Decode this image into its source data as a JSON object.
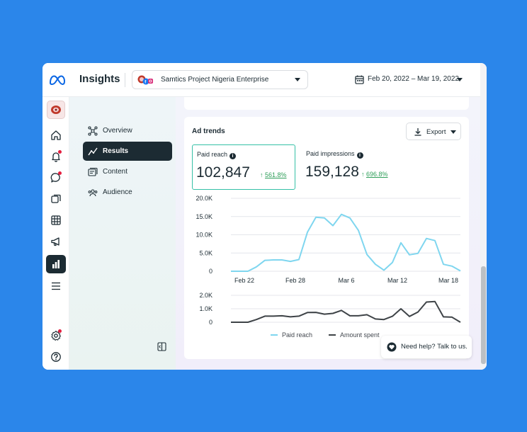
{
  "header": {
    "app_title": "Insights",
    "account_name": "Samtics Project Nigeria Enterprise",
    "date_range": "Feb 20, 2022 – Mar 19, 2022"
  },
  "rail": {
    "items": [
      "profile-avatar",
      "home-icon",
      "notifications-icon",
      "messages-icon",
      "pages-icon",
      "table-icon",
      "ads-megaphone-icon",
      "insights-chart-icon",
      "menu-icon",
      "settings-icon",
      "help-icon"
    ],
    "active": "insights-chart-icon"
  },
  "subnav": {
    "items": [
      {
        "label": "Overview",
        "icon": "overview-icon"
      },
      {
        "label": "Results",
        "icon": "results-trend-icon",
        "active": true
      },
      {
        "label": "Content",
        "icon": "content-icon"
      },
      {
        "label": "Audience",
        "icon": "audience-icon"
      }
    ]
  },
  "card": {
    "title": "Ad trends",
    "export_label": "Export"
  },
  "metrics": [
    {
      "label": "Paid reach",
      "value": "102,847",
      "change": "561.8%",
      "selected": true
    },
    {
      "label": "Paid impressions",
      "value": "159,128",
      "change": "696.8%",
      "selected": false
    }
  ],
  "chart_data": [
    {
      "type": "line",
      "x_tick_labels": [
        "Feb 22",
        "Feb 28",
        "Mar 6",
        "Mar 12",
        "Mar 18"
      ],
      "y_tick_labels": [
        "20.0K",
        "15.0K",
        "10.0K",
        "5.0K",
        "0"
      ],
      "ylim": [
        0,
        20000
      ],
      "grid": true,
      "series": [
        {
          "name": "Paid reach",
          "color": "#7fd6ef",
          "values": [
            0,
            0,
            0,
            1200,
            3000,
            3100,
            3100,
            2700,
            3200,
            10700,
            14800,
            14600,
            12500,
            15600,
            14600,
            11200,
            4600,
            1900,
            300,
            2400,
            7800,
            4500,
            4900,
            9000,
            8400,
            1900,
            1400,
            100
          ]
        }
      ]
    },
    {
      "type": "line",
      "y_tick_labels": [
        "2.0K",
        "1.0K",
        "0"
      ],
      "ylim": [
        0,
        2000
      ],
      "grid": true,
      "series": [
        {
          "name": "Amount spent",
          "color": "#3e4347",
          "values": [
            0,
            0,
            0,
            200,
            450,
            450,
            480,
            400,
            450,
            720,
            730,
            600,
            660,
            880,
            480,
            480,
            560,
            240,
            200,
            440,
            1000,
            430,
            760,
            1500,
            1540,
            400,
            380,
            0
          ]
        }
      ],
      "legend": [
        "Paid reach",
        "Amount spent"
      ],
      "legend_placement": "bottom"
    }
  ],
  "help": {
    "label": "Need help? Talk to us."
  }
}
